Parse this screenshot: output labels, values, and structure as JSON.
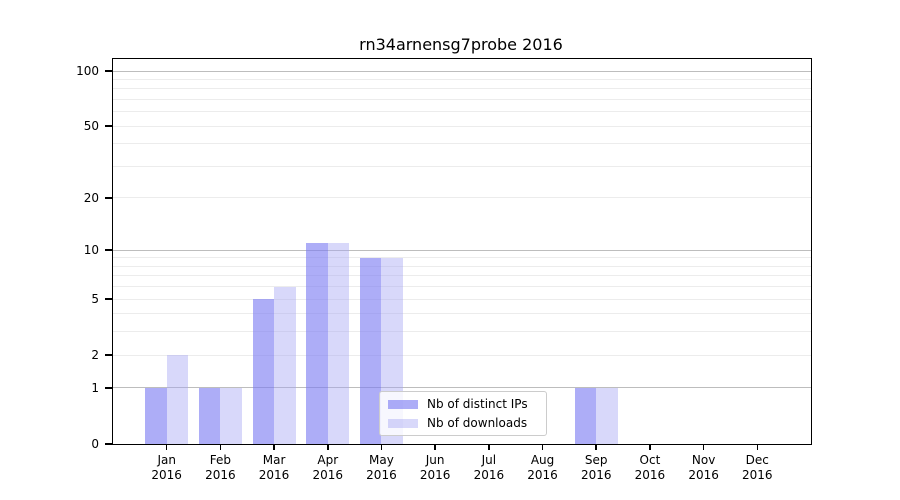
{
  "chart_data": {
    "type": "bar",
    "title": "rn34arnensg7probe 2016",
    "categories": [
      "Jan",
      "Feb",
      "Mar",
      "Apr",
      "May",
      "Jun",
      "Jul",
      "Aug",
      "Sep",
      "Oct",
      "Nov",
      "Dec"
    ],
    "category_sublabel": "2016",
    "series": [
      {
        "name": "Nb of distinct IPs",
        "color": "rgba(122,122,242,0.62)",
        "values": [
          1,
          1,
          5,
          11,
          9,
          0,
          0,
          0,
          1,
          0,
          0,
          0
        ]
      },
      {
        "name": "Nb of downloads",
        "color": "rgba(162,162,242,0.42)",
        "values": [
          2,
          1,
          6,
          11,
          9,
          0,
          0,
          0,
          1,
          0,
          0,
          0
        ]
      }
    ],
    "xlabel": "",
    "ylabel": "",
    "yscale": "log10(value+1)",
    "ylim": [
      0,
      117
    ],
    "yticks": [
      0,
      1,
      2,
      5,
      10,
      20,
      50,
      100
    ],
    "grid": "horizontal",
    "grid_major_at": [
      1,
      10,
      100
    ],
    "grid_minor_at": [
      2,
      3,
      4,
      5,
      6,
      7,
      8,
      9,
      20,
      30,
      40,
      50,
      60,
      70,
      80,
      90
    ],
    "legend_position": "inside-bottom-center",
    "colors": {
      "grid_major": "#bdbdbd",
      "grid_minor": "#ececec",
      "spine": "#000000",
      "legend_border": "#cccccc",
      "legend_bg": "rgba(255,255,255,0.8)"
    }
  }
}
